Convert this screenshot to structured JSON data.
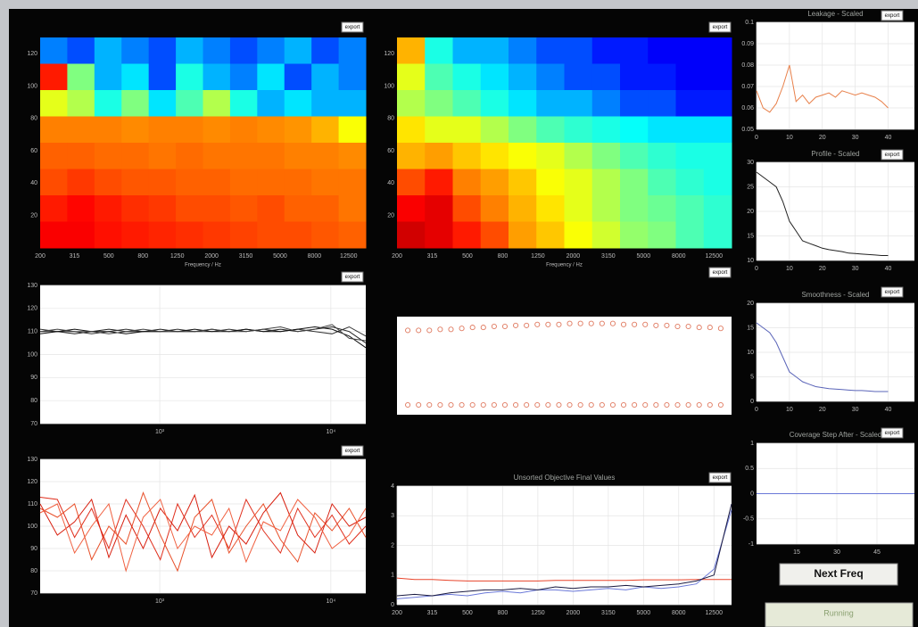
{
  "buttons": {
    "export": "export",
    "next": "Next Freq",
    "status": "Running"
  },
  "chart_data": [
    {
      "type": "heatmap",
      "colormap": "jet",
      "zlim": [
        0,
        1
      ],
      "xlabel": "Frequency / Hz",
      "xlim": [
        0,
        19
      ],
      "xticks": [
        {
          "value": 0,
          "label": "200"
        },
        {
          "value": 2,
          "label": "315"
        },
        {
          "value": 4,
          "label": "500"
        },
        {
          "value": 6,
          "label": "800"
        },
        {
          "value": 8,
          "label": "1250"
        },
        {
          "value": 10,
          "label": "2000"
        },
        {
          "value": 12,
          "label": "3150"
        },
        {
          "value": 14,
          "label": "5000"
        },
        {
          "value": 16,
          "label": "8000"
        },
        {
          "value": 18,
          "label": "12500"
        }
      ],
      "ylim": [
        0,
        130
      ],
      "yticks": [
        20,
        40,
        60,
        80,
        100,
        120
      ],
      "z": [
        [
          0.25,
          0.2,
          0.3,
          0.25,
          0.2,
          0.3,
          0.25,
          0.2,
          0.25,
          0.3,
          0.2,
          0.25
        ],
        [
          0.85,
          0.5,
          0.3,
          0.35,
          0.2,
          0.4,
          0.3,
          0.25,
          0.35,
          0.2,
          0.3,
          0.25
        ],
        [
          0.6,
          0.55,
          0.4,
          0.5,
          0.35,
          0.45,
          0.55,
          0.4,
          0.3,
          0.35,
          0.3,
          0.3
        ],
        [
          0.75,
          0.75,
          0.75,
          0.74,
          0.75,
          0.75,
          0.74,
          0.75,
          0.74,
          0.73,
          0.7,
          0.62
        ],
        [
          0.78,
          0.78,
          0.77,
          0.77,
          0.76,
          0.77,
          0.76,
          0.76,
          0.76,
          0.75,
          0.75,
          0.74
        ],
        [
          0.8,
          0.82,
          0.8,
          0.79,
          0.79,
          0.78,
          0.78,
          0.77,
          0.77,
          0.77,
          0.76,
          0.76
        ],
        [
          0.85,
          0.87,
          0.85,
          0.83,
          0.82,
          0.8,
          0.8,
          0.79,
          0.8,
          0.78,
          0.78,
          0.76
        ],
        [
          0.88,
          0.88,
          0.86,
          0.85,
          0.84,
          0.83,
          0.82,
          0.81,
          0.8,
          0.8,
          0.79,
          0.78
        ]
      ]
    },
    {
      "type": "heatmap",
      "colormap": "jet",
      "zlim": [
        0,
        1
      ],
      "xlabel": "Frequency / Hz",
      "xlim": [
        0,
        19
      ],
      "xticks": [
        {
          "value": 0,
          "label": "200"
        },
        {
          "value": 2,
          "label": "315"
        },
        {
          "value": 4,
          "label": "500"
        },
        {
          "value": 6,
          "label": "800"
        },
        {
          "value": 8,
          "label": "1250"
        },
        {
          "value": 10,
          "label": "2000"
        },
        {
          "value": 12,
          "label": "3150"
        },
        {
          "value": 14,
          "label": "5000"
        },
        {
          "value": 16,
          "label": "8000"
        },
        {
          "value": 18,
          "label": "12500"
        }
      ],
      "ylim": [
        0,
        130
      ],
      "yticks": [
        20,
        40,
        60,
        80,
        100,
        120
      ],
      "z": [
        [
          0.7,
          0.4,
          0.3,
          0.3,
          0.25,
          0.2,
          0.2,
          0.15,
          0.15,
          0.12,
          0.12,
          0.12
        ],
        [
          0.6,
          0.45,
          0.4,
          0.35,
          0.3,
          0.25,
          0.2,
          0.2,
          0.15,
          0.15,
          0.12,
          0.12
        ],
        [
          0.55,
          0.5,
          0.45,
          0.4,
          0.35,
          0.3,
          0.3,
          0.25,
          0.2,
          0.2,
          0.15,
          0.15
        ],
        [
          0.65,
          0.6,
          0.6,
          0.55,
          0.5,
          0.45,
          0.42,
          0.4,
          0.38,
          0.35,
          0.35,
          0.35
        ],
        [
          0.7,
          0.72,
          0.68,
          0.65,
          0.62,
          0.6,
          0.55,
          0.5,
          0.45,
          0.42,
          0.4,
          0.4
        ],
        [
          0.8,
          0.85,
          0.75,
          0.72,
          0.68,
          0.62,
          0.6,
          0.55,
          0.5,
          0.45,
          0.42,
          0.4
        ],
        [
          0.88,
          0.9,
          0.8,
          0.75,
          0.7,
          0.65,
          0.6,
          0.55,
          0.5,
          0.48,
          0.45,
          0.42
        ],
        [
          0.92,
          0.9,
          0.85,
          0.8,
          0.72,
          0.68,
          0.62,
          0.58,
          0.52,
          0.5,
          0.45,
          0.42
        ]
      ]
    },
    {
      "type": "line",
      "xscale": "log",
      "grid": true,
      "xlim": [
        200,
        16000
      ],
      "xticks": [
        {
          "value": 1000,
          "label": "10³"
        },
        {
          "value": 10000,
          "label": "10⁴"
        }
      ],
      "ylim": [
        70,
        130
      ],
      "yticks": [
        70,
        80,
        90,
        100,
        110,
        120,
        130
      ],
      "x": [
        200,
        252,
        318,
        400,
        504,
        635,
        800,
        1008,
        1270,
        1600,
        2016,
        2540,
        3200,
        4032,
        5080,
        6400,
        8063,
        10159,
        12800,
        16000
      ],
      "series": [
        {
          "color": "#222222",
          "values": [
            110,
            110,
            109,
            110,
            111,
            110,
            110,
            111,
            110,
            110,
            111,
            110,
            111,
            110,
            111,
            110,
            111,
            112,
            110,
            105
          ]
        },
        {
          "color": "#333333",
          "values": [
            111,
            110,
            110,
            109,
            110,
            111,
            110,
            110,
            111,
            110,
            110,
            111,
            110,
            111,
            110,
            111,
            110,
            109,
            112,
            108
          ]
        },
        {
          "color": "#111111",
          "values": [
            109,
            110,
            111,
            110,
            110,
            109,
            110,
            110,
            110,
            111,
            110,
            110,
            111,
            110,
            110,
            111,
            112,
            111,
            108,
            103
          ]
        },
        {
          "color": "#444444",
          "values": [
            110,
            111,
            110,
            110,
            109,
            110,
            111,
            110,
            110,
            110,
            111,
            110,
            110,
            111,
            112,
            110,
            111,
            113,
            107,
            106
          ]
        }
      ]
    },
    {
      "type": "line",
      "xscale": "log",
      "grid": true,
      "xlim": [
        200,
        16000
      ],
      "xticks": [
        {
          "value": 1000,
          "label": "10³"
        },
        {
          "value": 10000,
          "label": "10⁴"
        }
      ],
      "ylim": [
        70,
        130
      ],
      "yticks": [
        70,
        80,
        90,
        100,
        110,
        120,
        130
      ],
      "x": [
        200,
        252,
        318,
        400,
        504,
        635,
        800,
        1008,
        1270,
        1600,
        2016,
        2540,
        3200,
        4032,
        5080,
        6400,
        8063,
        10159,
        12800,
        16000
      ],
      "series": [
        {
          "color": "#e0301e",
          "values": [
            113,
            112,
            95,
            108,
            90,
            112,
            100,
            85,
            110,
            95,
            105,
            90,
            112,
            98,
            88,
            108,
            95,
            105,
            92,
            100
          ]
        },
        {
          "color": "#e8502a",
          "values": [
            108,
            104,
            110,
            85,
            100,
            92,
            115,
            96,
            80,
            104,
            112,
            88,
            100,
            110,
            94,
            84,
            106,
            98,
            108,
            95
          ]
        },
        {
          "color": "#d82010",
          "values": [
            110,
            96,
            102,
            112,
            86,
            105,
            90,
            108,
            98,
            114,
            86,
            100,
            92,
            106,
            115,
            96,
            88,
            110,
            100,
            104
          ]
        },
        {
          "color": "#f06040",
          "values": [
            106,
            110,
            88,
            100,
            110,
            80,
            104,
            112,
            90,
            100,
            96,
            108,
            84,
            102,
            98,
            112,
            104,
            90,
            96,
            108
          ]
        }
      ]
    },
    {
      "type": "scatter",
      "xlim": [
        -1,
        30
      ],
      "ylim": [
        0,
        1
      ],
      "x": [
        0,
        1,
        2,
        3,
        4,
        5,
        6,
        7,
        8,
        9,
        10,
        11,
        12,
        13,
        14,
        15,
        16,
        17,
        18,
        19,
        20,
        21,
        22,
        23,
        24,
        25,
        26,
        27,
        28,
        29
      ],
      "series": [
        {
          "color": "#e07a60",
          "values": [
            0.86,
            0.86,
            0.86,
            0.87,
            0.87,
            0.88,
            0.89,
            0.89,
            0.9,
            0.9,
            0.91,
            0.91,
            0.92,
            0.92,
            0.92,
            0.93,
            0.93,
            0.93,
            0.93,
            0.93,
            0.92,
            0.92,
            0.92,
            0.91,
            0.91,
            0.9,
            0.9,
            0.89,
            0.89,
            0.88
          ]
        },
        {
          "color": "#e07a60",
          "values": [
            0.1,
            0.1,
            0.1,
            0.1,
            0.1,
            0.1,
            0.1,
            0.1,
            0.1,
            0.1,
            0.1,
            0.1,
            0.1,
            0.1,
            0.1,
            0.1,
            0.1,
            0.1,
            0.1,
            0.1,
            0.1,
            0.1,
            0.1,
            0.1,
            0.1,
            0.1,
            0.1,
            0.1,
            0.1,
            0.1
          ]
        }
      ]
    },
    {
      "type": "line",
      "title": "Unsorted Objective Final Values",
      "grid": true,
      "xlim": [
        0,
        19
      ],
      "xticks": [
        {
          "value": 0,
          "label": "200"
        },
        {
          "value": 2,
          "label": "315"
        },
        {
          "value": 4,
          "label": "500"
        },
        {
          "value": 6,
          "label": "800"
        },
        {
          "value": 8,
          "label": "1250"
        },
        {
          "value": 10,
          "label": "2000"
        },
        {
          "value": 12,
          "label": "3150"
        },
        {
          "value": 14,
          "label": "5000"
        },
        {
          "value": 16,
          "label": "8000"
        },
        {
          "value": 18,
          "label": "12500"
        }
      ],
      "ylim": [
        0,
        4
      ],
      "yticks": [
        0,
        1,
        2,
        3,
        4
      ],
      "x": [
        0,
        1,
        2,
        3,
        4,
        5,
        6,
        7,
        8,
        9,
        10,
        11,
        12,
        13,
        14,
        15,
        16,
        17,
        18,
        19
      ],
      "series": [
        {
          "color": "#e8442a",
          "values": [
            0.9,
            0.85,
            0.85,
            0.82,
            0.8,
            0.8,
            0.8,
            0.8,
            0.8,
            0.82,
            0.82,
            0.82,
            0.82,
            0.82,
            0.84,
            0.84,
            0.84,
            0.85,
            0.85,
            0.85
          ]
        },
        {
          "color": "#6a78d8",
          "values": [
            0.2,
            0.25,
            0.3,
            0.35,
            0.3,
            0.4,
            0.45,
            0.4,
            0.5,
            0.5,
            0.45,
            0.5,
            0.55,
            0.5,
            0.6,
            0.55,
            0.6,
            0.7,
            1.2,
            3.2
          ]
        },
        {
          "color": "#1a1a40",
          "values": [
            0.3,
            0.35,
            0.3,
            0.4,
            0.45,
            0.5,
            0.5,
            0.55,
            0.5,
            0.6,
            0.55,
            0.6,
            0.6,
            0.65,
            0.6,
            0.65,
            0.7,
            0.8,
            1.0,
            3.4
          ]
        }
      ]
    },
    {
      "type": "line",
      "title": "Leakage - Scaled",
      "grid": true,
      "xlim": [
        0,
        48
      ],
      "xticks": [
        0,
        10,
        20,
        30,
        40
      ],
      "ylim": [
        0.05,
        0.1
      ],
      "yticks": [
        0.05,
        0.06,
        0.07,
        0.08,
        0.09,
        0.1
      ],
      "x": [
        0,
        2,
        4,
        6,
        8,
        10,
        12,
        14,
        16,
        18,
        20,
        22,
        24,
        26,
        28,
        30,
        32,
        34,
        36,
        38,
        40
      ],
      "series": [
        {
          "color": "#e8804a",
          "values": [
            0.068,
            0.06,
            0.058,
            0.062,
            0.07,
            0.08,
            0.063,
            0.066,
            0.062,
            0.065,
            0.066,
            0.067,
            0.065,
            0.068,
            0.067,
            0.066,
            0.067,
            0.066,
            0.065,
            0.063,
            0.06
          ]
        }
      ]
    },
    {
      "type": "line",
      "title": "Profile - Scaled",
      "grid": true,
      "xlim": [
        0,
        48
      ],
      "xticks": [
        0,
        10,
        20,
        30,
        40
      ],
      "ylim": [
        10,
        30
      ],
      "yticks": [
        10,
        15,
        20,
        25,
        30
      ],
      "x": [
        0,
        2,
        4,
        6,
        8,
        10,
        12,
        14,
        16,
        18,
        20,
        22,
        24,
        26,
        28,
        30,
        32,
        34,
        36,
        38,
        40
      ],
      "series": [
        {
          "color": "#222222",
          "values": [
            28,
            27,
            26,
            25,
            22,
            18,
            16,
            14,
            13.5,
            13,
            12.5,
            12.2,
            12,
            11.8,
            11.5,
            11.4,
            11.3,
            11.2,
            11.1,
            11,
            11
          ]
        }
      ]
    },
    {
      "type": "line",
      "title": "Smoothness - Scaled",
      "grid": true,
      "xlim": [
        0,
        48
      ],
      "xticks": [
        0,
        10,
        20,
        30,
        40
      ],
      "ylim": [
        0,
        20
      ],
      "yticks": [
        0,
        5,
        10,
        15,
        20
      ],
      "x": [
        0,
        2,
        4,
        6,
        8,
        10,
        12,
        14,
        16,
        18,
        20,
        22,
        24,
        26,
        28,
        30,
        32,
        34,
        36,
        38,
        40
      ],
      "series": [
        {
          "color": "#5a64b8",
          "values": [
            16,
            15,
            14,
            12,
            9,
            6,
            5,
            4,
            3.5,
            3,
            2.8,
            2.6,
            2.5,
            2.4,
            2.3,
            2.2,
            2.2,
            2.1,
            2,
            2,
            2
          ]
        }
      ]
    },
    {
      "type": "line",
      "title": "Coverage Step After - Scaled",
      "grid": true,
      "xlim": [
        0,
        59
      ],
      "xticks": [
        15,
        30,
        45
      ],
      "ylim": [
        -1,
        1
      ],
      "yticks": [
        -1,
        -0.5,
        0,
        0.5,
        1
      ],
      "x": [
        0,
        10,
        20,
        30,
        40,
        50,
        59
      ],
      "series": [
        {
          "color": "#6a78d8",
          "values": [
            0,
            0,
            0,
            0,
            0,
            0,
            0
          ]
        }
      ]
    }
  ]
}
